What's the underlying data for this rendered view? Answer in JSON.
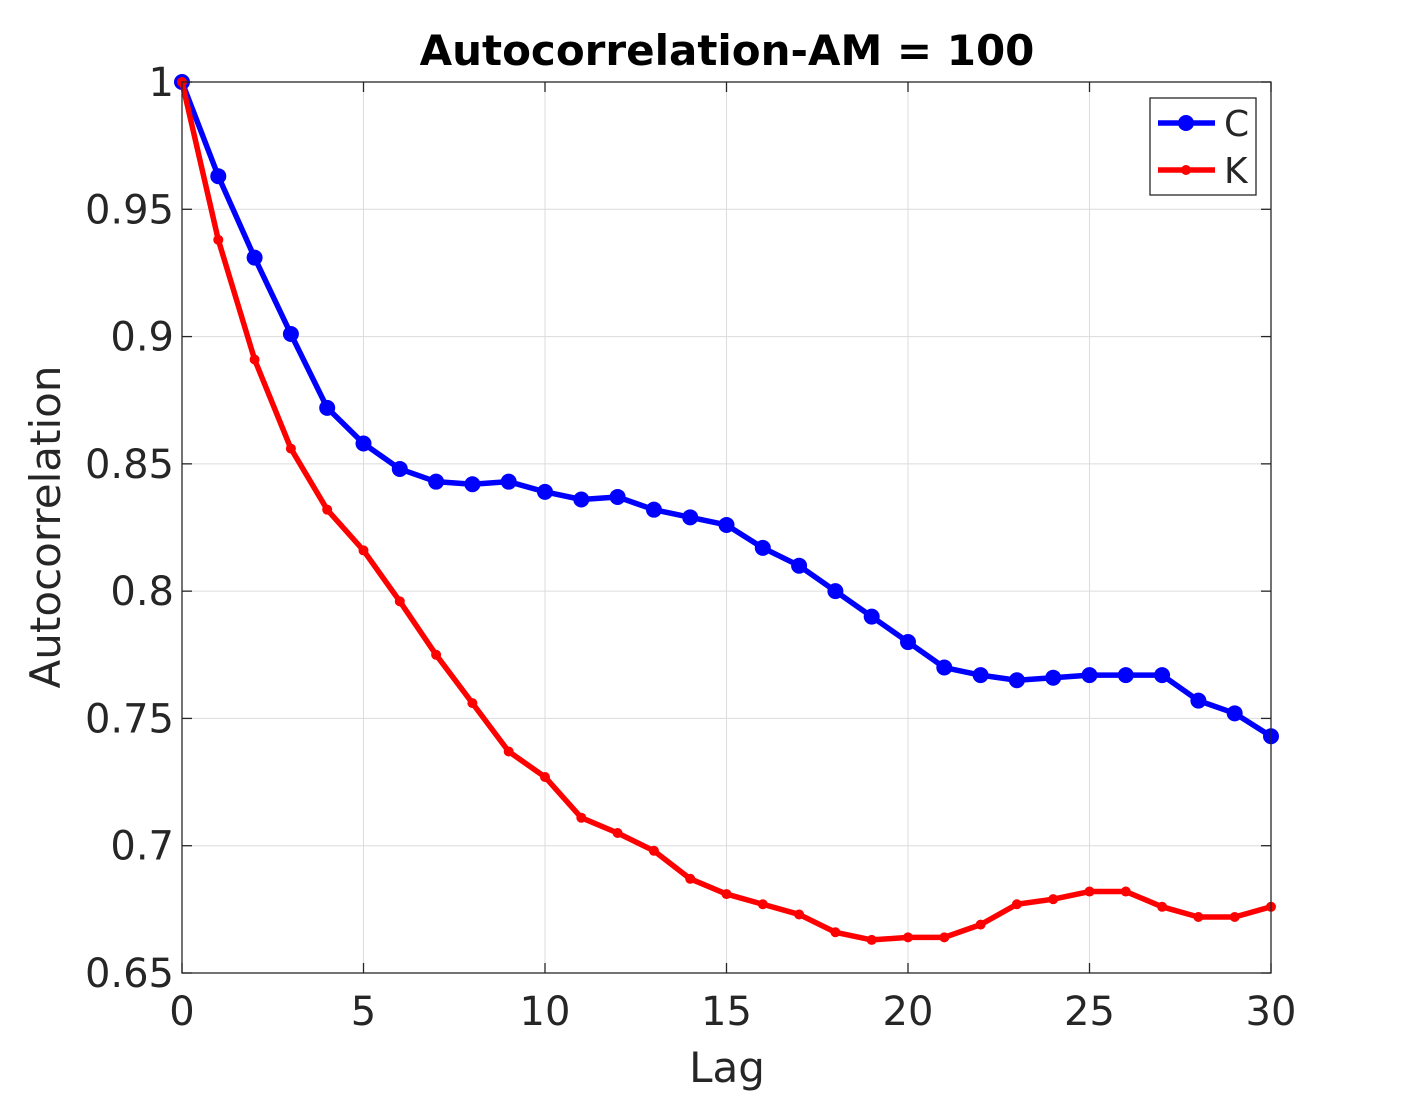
{
  "chart_data": {
    "type": "line",
    "title": "Autocorrelation-AM = 100",
    "xlabel": "Lag",
    "ylabel": "Autocorrelation",
    "xlim": [
      0,
      30
    ],
    "ylim": [
      0.65,
      1
    ],
    "x_ticks": [
      0,
      5,
      10,
      15,
      20,
      25,
      30
    ],
    "y_ticks": [
      0.65,
      0.7,
      0.75,
      0.8,
      0.85,
      0.9,
      0.95,
      1
    ],
    "y_tick_labels": [
      "0.65",
      "0.7",
      "0.75",
      "0.8",
      "0.85",
      "0.9",
      "0.95",
      "1"
    ],
    "grid": true,
    "legend_position": "top-right",
    "x": [
      0,
      1,
      2,
      3,
      4,
      5,
      6,
      7,
      8,
      9,
      10,
      11,
      12,
      13,
      14,
      15,
      16,
      17,
      18,
      19,
      20,
      21,
      22,
      23,
      24,
      25,
      26,
      27,
      28,
      29,
      30
    ],
    "series": [
      {
        "name": "C",
        "color": "#0000ff",
        "marker": "large-dot",
        "values": [
          1.0,
          0.963,
          0.931,
          0.901,
          0.872,
          0.858,
          0.848,
          0.843,
          0.842,
          0.843,
          0.839,
          0.836,
          0.837,
          0.832,
          0.829,
          0.826,
          0.817,
          0.81,
          0.8,
          0.79,
          0.78,
          0.77,
          0.767,
          0.765,
          0.766,
          0.767,
          0.767,
          0.767,
          0.757,
          0.752,
          0.743
        ]
      },
      {
        "name": "K",
        "color": "#ff0000",
        "marker": "small-dot",
        "values": [
          1.0,
          0.938,
          0.891,
          0.856,
          0.832,
          0.816,
          0.796,
          0.775,
          0.756,
          0.737,
          0.727,
          0.711,
          0.705,
          0.698,
          0.687,
          0.681,
          0.677,
          0.673,
          0.666,
          0.663,
          0.664,
          0.664,
          0.669,
          0.677,
          0.679,
          0.682,
          0.682,
          0.676,
          0.672,
          0.672,
          0.676
        ]
      }
    ]
  }
}
